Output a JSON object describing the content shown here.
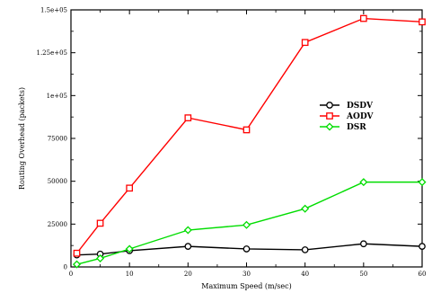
{
  "chart_data": {
    "type": "line",
    "title": "",
    "xlabel": "Maximum Speed (m/sec)",
    "ylabel": "Routing Overhead (packets)",
    "xlim": [
      0,
      60
    ],
    "ylim": [
      0,
      150000
    ],
    "xticks": [
      0,
      10,
      20,
      30,
      40,
      50,
      60
    ],
    "xtick_labels": [
      "0",
      "10",
      "20",
      "30",
      "40",
      "50",
      "60"
    ],
    "yticks": [
      0,
      25000,
      50000,
      75000,
      100000,
      125000,
      150000
    ],
    "ytick_labels": [
      "0",
      "25000",
      "50000",
      "75000",
      "1e+05",
      "1.25e+05",
      "1.5e+05"
    ],
    "grid": false,
    "legend_position": "right",
    "series": [
      {
        "name": "DSDV",
        "color": "#000000",
        "marker": "circle",
        "x": [
          1,
          5,
          10,
          20,
          30,
          40,
          50,
          60
        ],
        "y": [
          7000,
          7500,
          9500,
          12000,
          10500,
          10000,
          13500,
          12000
        ]
      },
      {
        "name": "AODV",
        "color": "#ff0000",
        "marker": "square",
        "x": [
          1,
          5,
          10,
          20,
          30,
          40,
          50,
          60
        ],
        "y": [
          8000,
          25500,
          46000,
          87000,
          80000,
          131000,
          145000,
          143000
        ]
      },
      {
        "name": "DSR",
        "color": "#00dd00",
        "marker": "diamond",
        "x": [
          1,
          5,
          10,
          20,
          30,
          40,
          50,
          60
        ],
        "y": [
          1500,
          5000,
          10500,
          21500,
          24500,
          34000,
          49500,
          49500
        ]
      }
    ]
  }
}
